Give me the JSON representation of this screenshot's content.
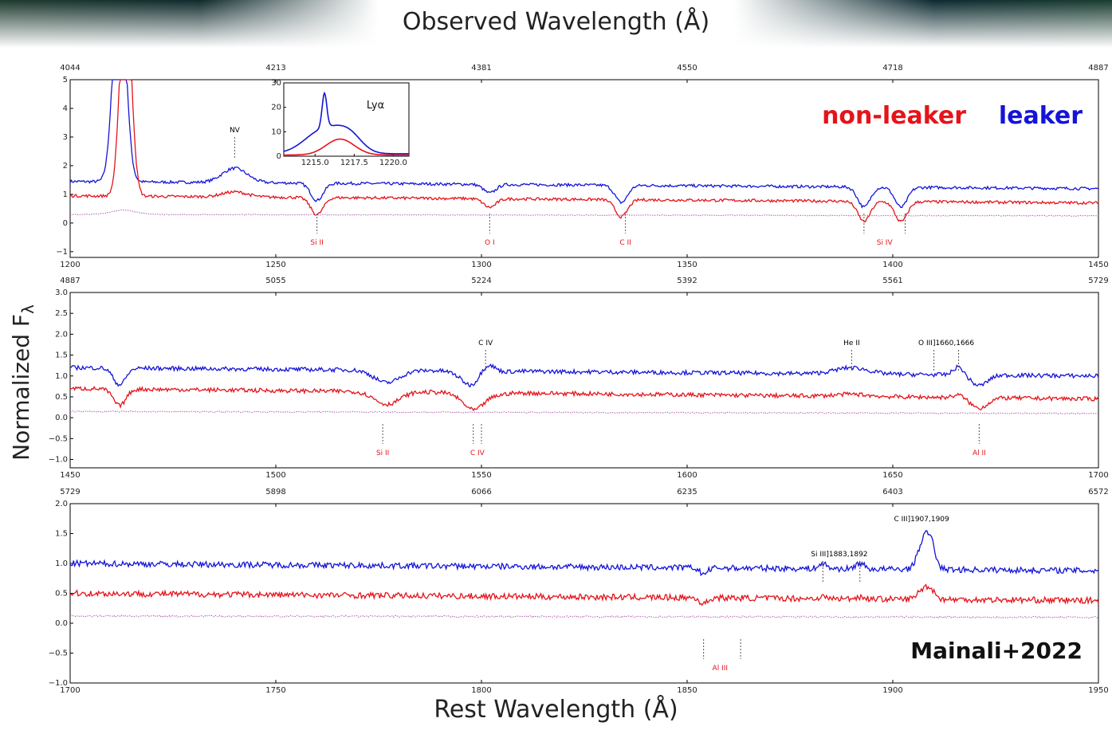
{
  "title_top": "Observed Wavelength (Å)",
  "xlabel_bottom": "Rest Wavelength (Å)",
  "ylabel": "Normalized F",
  "ylabel_sub": "λ",
  "legend": {
    "nonleaker": "non-leaker",
    "leaker": "leaker"
  },
  "credit": "Mainali+2022",
  "colors": {
    "leaker": "#1414d8",
    "nonleaker": "#e4141b",
    "error": "#b05cb0"
  },
  "chart_data": [
    {
      "type": "line",
      "panel": "top",
      "x_range": [
        1200,
        1450
      ],
      "ylim": [
        -1.2,
        5
      ],
      "x_ticks": [
        "1200",
        "1250",
        "1300",
        "1350",
        "1400",
        "1450"
      ],
      "top_ticks": [
        "4044",
        "4213",
        "4381",
        "4550",
        "4718",
        "4887"
      ],
      "y_ticks": [
        "−1",
        "0",
        "1",
        "2",
        "3",
        "4",
        "5"
      ],
      "series": [
        {
          "key": "leaker",
          "baseline": 1.45,
          "end": 1.2
        },
        {
          "key": "nonleaker",
          "baseline": 0.95,
          "end": 0.7
        },
        {
          "key": "error",
          "baseline": 0.3,
          "end": 0.25
        }
      ],
      "features": [
        {
          "x": 1213,
          "depth": 2.5,
          "width": 3,
          "kind": "em_both"
        },
        {
          "x": 1240,
          "depth": 0.5,
          "width": 3,
          "kind": "em_blue"
        },
        {
          "x": 1260,
          "depth": -0.6,
          "width": 1.5,
          "kind": "abs"
        },
        {
          "x": 1302,
          "depth": -0.3,
          "width": 1.5,
          "kind": "abs"
        },
        {
          "x": 1334,
          "depth": -0.6,
          "width": 1.5,
          "kind": "abs"
        },
        {
          "x": 1393,
          "depth": -0.7,
          "width": 1.5,
          "kind": "abs"
        },
        {
          "x": 1402,
          "depth": -0.7,
          "width": 1.5,
          "kind": "abs"
        }
      ],
      "markers": [
        {
          "x": 1240,
          "label": "NV",
          "pos": "above",
          "color": "#000"
        },
        {
          "x": 1260,
          "label": "Si II",
          "pos": "below",
          "color": "#e4141b"
        },
        {
          "x": 1302,
          "label": "O I",
          "pos": "below",
          "color": "#e4141b"
        },
        {
          "x": 1335,
          "label": "C II",
          "pos": "below",
          "color": "#e4141b"
        },
        {
          "x": 1393,
          "label": "",
          "pos": "below",
          "color": "#e4141b"
        },
        {
          "x": 1403,
          "label": "",
          "pos": "below",
          "color": "#e4141b"
        },
        {
          "x": 1398,
          "label": "Si IV",
          "pos": "label-only",
          "color": "#e4141b"
        }
      ],
      "inset": {
        "title": "Lyα",
        "x_ticks": [
          "1215.0",
          "1217.5",
          "1220.0"
        ],
        "y_ticks": [
          "0",
          "10",
          "20",
          "30"
        ],
        "x_range": [
          1213,
          1221
        ],
        "ylim": [
          0,
          30
        ],
        "leaker_peak": 25,
        "nonleaker_peak": 7
      }
    },
    {
      "type": "line",
      "panel": "middle",
      "x_range": [
        1450,
        1700
      ],
      "ylim": [
        -1.2,
        3.0
      ],
      "x_ticks": [
        "1450",
        "1500",
        "1550",
        "1600",
        "1650",
        "1700"
      ],
      "top_ticks": [
        "4887",
        "5055",
        "5224",
        "5392",
        "5561",
        "5729"
      ],
      "y_ticks": [
        "−1.0",
        "−0.5",
        "0.0",
        "0.5",
        "1.0",
        "1.5",
        "2.0",
        "2.5",
        "3.0"
      ],
      "series": [
        {
          "key": "leaker",
          "baseline": 1.2,
          "end": 1.0
        },
        {
          "key": "nonleaker",
          "baseline": 0.7,
          "end": 0.45
        },
        {
          "key": "error",
          "baseline": 0.15,
          "end": 0.1
        }
      ],
      "features": [
        {
          "x": 1462,
          "depth": -0.4,
          "width": 1.5,
          "kind": "abs"
        },
        {
          "x": 1527,
          "depth": -0.3,
          "width": 3,
          "kind": "abs"
        },
        {
          "x": 1549,
          "depth": -0.5,
          "width": 3,
          "kind": "abs"
        },
        {
          "x": 1551,
          "depth": 0.5,
          "width": 2,
          "kind": "em_blue"
        },
        {
          "x": 1640,
          "depth": 0.15,
          "width": 4,
          "kind": "em_blue"
        },
        {
          "x": 1666,
          "depth": 0.2,
          "width": 1.2,
          "kind": "em_blue"
        },
        {
          "x": 1671,
          "depth": -0.25,
          "width": 2,
          "kind": "abs"
        }
      ],
      "markers": [
        {
          "x": 1551,
          "label": "C IV",
          "pos": "above",
          "color": "#000"
        },
        {
          "x": 1640,
          "label": "He II",
          "pos": "above",
          "color": "#000"
        },
        {
          "x": 1660,
          "label": "",
          "pos": "above",
          "color": "#000"
        },
        {
          "x": 1666,
          "label": "",
          "pos": "above",
          "color": "#000"
        },
        {
          "x": 1663,
          "label": "O III]1660,1666",
          "pos": "label-only-above",
          "color": "#000"
        },
        {
          "x": 1526,
          "label": "Si II",
          "pos": "below",
          "color": "#e4141b"
        },
        {
          "x": 1548,
          "label": "",
          "pos": "below",
          "color": "#e4141b"
        },
        {
          "x": 1550,
          "label": "",
          "pos": "below",
          "color": "#e4141b"
        },
        {
          "x": 1549,
          "label": "C IV",
          "pos": "label-only",
          "color": "#e4141b"
        },
        {
          "x": 1671,
          "label": "Al II",
          "pos": "below",
          "color": "#e4141b"
        }
      ]
    },
    {
      "type": "line",
      "panel": "bottom",
      "x_range": [
        1700,
        1950
      ],
      "ylim": [
        -1.0,
        2.0
      ],
      "x_ticks": [
        "1700",
        "1750",
        "1800",
        "1850",
        "1900",
        "1950"
      ],
      "top_ticks": [
        "5729",
        "5898",
        "6066",
        "6235",
        "6403",
        "6572"
      ],
      "y_ticks": [
        "−1.0",
        "−0.5",
        "0.0",
        "0.5",
        "1.0",
        "1.5",
        "2.0"
      ],
      "series": [
        {
          "key": "leaker",
          "baseline": 1.0,
          "end": 0.88
        },
        {
          "key": "nonleaker",
          "baseline": 0.5,
          "end": 0.38
        },
        {
          "key": "error",
          "baseline": 0.12,
          "end": 0.1
        }
      ],
      "features": [
        {
          "x": 1883,
          "depth": 0.08,
          "width": 1,
          "kind": "em_blue"
        },
        {
          "x": 1892,
          "depth": 0.1,
          "width": 1,
          "kind": "em_blue"
        },
        {
          "x": 1907,
          "depth": 0.35,
          "width": 1.2,
          "kind": "em_blue"
        },
        {
          "x": 1909,
          "depth": 0.5,
          "width": 1.2,
          "kind": "em_blue"
        },
        {
          "x": 1854,
          "depth": -0.1,
          "width": 1,
          "kind": "abs"
        }
      ],
      "markers": [
        {
          "x": 1883,
          "label": "",
          "pos": "above",
          "color": "#000"
        },
        {
          "x": 1892,
          "label": "",
          "pos": "above",
          "color": "#000"
        },
        {
          "x": 1887,
          "label": "Si III]1883,1892",
          "pos": "label-only-above",
          "color": "#000"
        },
        {
          "x": 1907,
          "label": "C III]1907,1909",
          "pos": "label-only-above-high",
          "color": "#000"
        },
        {
          "x": 1854,
          "label": "",
          "pos": "below",
          "color": "#e4141b"
        },
        {
          "x": 1863,
          "label": "",
          "pos": "below",
          "color": "#e4141b"
        },
        {
          "x": 1858,
          "label": "Al III",
          "pos": "label-only",
          "color": "#e4141b"
        }
      ]
    }
  ]
}
